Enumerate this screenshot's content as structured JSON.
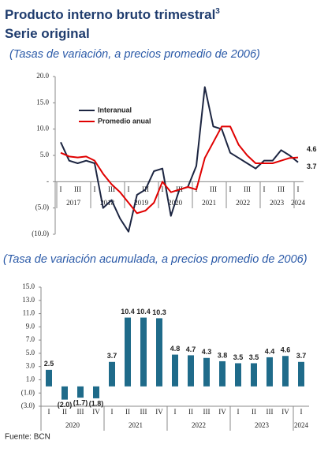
{
  "source": "Fuente: BCN",
  "chart_data": [
    {
      "type": "line",
      "title": "Producto interno bruto trimestral",
      "title_sup": "3",
      "subtitle": "Serie original",
      "note": "(Tasas de variación, a precios promedio de 2006)",
      "categories": [
        "I",
        null,
        "III",
        null,
        "I",
        null,
        "III",
        null,
        "I",
        null,
        "III",
        null,
        "I",
        null,
        "III",
        null,
        "I",
        null,
        "III",
        null,
        "I",
        null,
        "III",
        null,
        "I",
        null,
        "III",
        null,
        "I"
      ],
      "years": [
        "2017",
        "2018",
        "2019",
        "2020",
        "2021",
        "2022",
        "2023",
        "2024"
      ],
      "series": [
        {
          "name": "Interanual",
          "color": "#1c2541",
          "values": [
            7.5,
            4.0,
            3.5,
            4.0,
            3.5,
            -5.0,
            -3.5,
            -7.0,
            -9.5,
            -2.5,
            -1.5,
            2.0,
            2.5,
            -6.5,
            -1.5,
            -1.0,
            3.0,
            18.0,
            10.5,
            10.0,
            5.5,
            4.5,
            3.5,
            2.5,
            4.0,
            4.0,
            6.0,
            5.0,
            3.7
          ]
        },
        {
          "name": "Promedio anual",
          "color": "#e00000",
          "values": [
            5.5,
            4.8,
            4.6,
            4.8,
            4.0,
            1.5,
            -0.5,
            -2.0,
            -4.0,
            -6.0,
            -5.5,
            -4.0,
            0.0,
            -2.0,
            -1.5,
            -1.0,
            -1.5,
            4.5,
            7.5,
            10.5,
            10.5,
            7.0,
            5.0,
            3.5,
            3.5,
            3.5,
            4.0,
            4.5,
            4.6
          ]
        }
      ],
      "ylim": [
        -10,
        20
      ],
      "yticks": [
        {
          "value": 20,
          "label": "20.0"
        },
        {
          "value": 15,
          "label": "15.0"
        },
        {
          "value": 10,
          "label": "10.0"
        },
        {
          "value": 5,
          "label": "5.0"
        },
        {
          "value": 0,
          "label": "-"
        },
        {
          "value": -5,
          "label": "(5.0)"
        },
        {
          "value": -10,
          "label": "(10.0)"
        }
      ]
    },
    {
      "type": "bar",
      "note": "(Tasa de variación acumulada, a precios promedio de 2006)",
      "categories": [
        "I",
        "II",
        "III",
        "IV",
        "I",
        "II",
        "III",
        "IV",
        "I",
        "II",
        "III",
        "IV",
        "I",
        "II",
        "III",
        "IV",
        "I"
      ],
      "years": [
        "2020",
        "2021",
        "2022",
        "2023",
        "2024"
      ],
      "color": "#1f6b8a",
      "values": [
        2.5,
        -2.0,
        -1.7,
        -1.8,
        3.7,
        10.4,
        10.4,
        10.3,
        4.8,
        4.7,
        4.3,
        3.8,
        3.5,
        3.5,
        4.4,
        4.6,
        3.7
      ],
      "value_labels": [
        "2.5",
        "(2.0)",
        "(1.7)",
        "(1.8)",
        "3.7",
        "10.4",
        "10.4",
        "10.3",
        "4.8",
        "4.7",
        "4.3",
        "3.8",
        "3.5",
        "3.5",
        "4.4",
        "4.6",
        "3.7"
      ],
      "ylim": [
        -3,
        15
      ],
      "yticks": [
        {
          "value": 15,
          "label": "15.0"
        },
        {
          "value": 13,
          "label": "13.0"
        },
        {
          "value": 11,
          "label": "11.0"
        },
        {
          "value": 9,
          "label": "9.0"
        },
        {
          "value": 7,
          "label": "7.0"
        },
        {
          "value": 5,
          "label": "5.0"
        },
        {
          "value": 3,
          "label": "3.0"
        },
        {
          "value": 1,
          "label": "1.0"
        },
        {
          "value": -1,
          "label": "(1.0)"
        },
        {
          "value": -3,
          "label": "(3.0)"
        }
      ]
    }
  ]
}
